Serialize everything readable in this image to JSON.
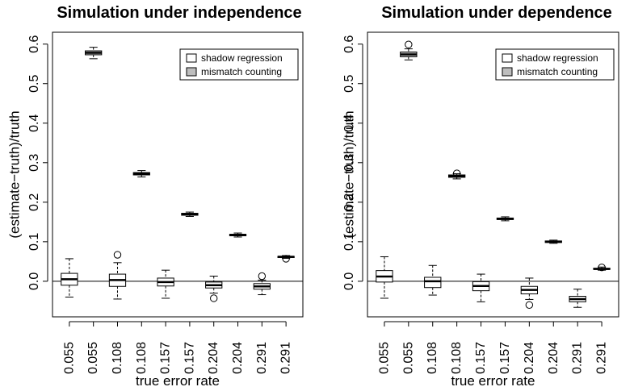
{
  "chart_data": [
    {
      "type": "box",
      "title": "Simulation under independence",
      "xlabel": "true error rate",
      "ylabel": "(estimate−truth)/truth",
      "ylim": [
        -0.09,
        0.63
      ],
      "yticks": [
        "0.0",
        "0.1",
        "0.2",
        "0.3",
        "0.4",
        "0.5",
        "0.6"
      ],
      "categories": [
        "0.055",
        "0.055",
        "0.108",
        "0.108",
        "0.157",
        "0.157",
        "0.204",
        "0.204",
        "0.291",
        "0.291"
      ],
      "legend": {
        "position": "top-right",
        "entries": [
          {
            "name": "shadow regression",
            "color": "#ffffff"
          },
          {
            "name": "mismatch counting",
            "color": "#bebebe"
          }
        ]
      },
      "boxes": [
        {
          "category": "0.055",
          "series": "shadow regression",
          "whisker_low": -0.04,
          "q1": -0.01,
          "median": 0.005,
          "q3": 0.02,
          "whisker_high": 0.057,
          "outliers": []
        },
        {
          "category": "0.055",
          "series": "mismatch counting",
          "whisker_low": 0.563,
          "q1": 0.573,
          "median": 0.578,
          "q3": 0.583,
          "whisker_high": 0.592,
          "outliers": []
        },
        {
          "category": "0.108",
          "series": "shadow regression",
          "whisker_low": -0.045,
          "q1": -0.013,
          "median": 0.003,
          "q3": 0.018,
          "whisker_high": 0.047,
          "outliers": [
            0.067
          ]
        },
        {
          "category": "0.108",
          "series": "mismatch counting",
          "whisker_low": 0.264,
          "q1": 0.269,
          "median": 0.272,
          "q3": 0.275,
          "whisker_high": 0.28,
          "outliers": []
        },
        {
          "category": "0.157",
          "series": "shadow regression",
          "whisker_low": -0.043,
          "q1": -0.012,
          "median": -0.002,
          "q3": 0.008,
          "whisker_high": 0.028,
          "outliers": []
        },
        {
          "category": "0.157",
          "series": "mismatch counting",
          "whisker_low": 0.164,
          "q1": 0.167,
          "median": 0.169,
          "q3": 0.172,
          "whisker_high": 0.175,
          "outliers": []
        },
        {
          "category": "0.204",
          "series": "shadow regression",
          "whisker_low": -0.03,
          "q1": -0.017,
          "median": -0.01,
          "q3": -0.002,
          "whisker_high": 0.013,
          "outliers": [
            -0.043
          ]
        },
        {
          "category": "0.204",
          "series": "mismatch counting",
          "whisker_low": 0.112,
          "q1": 0.115,
          "median": 0.117,
          "q3": 0.119,
          "whisker_high": 0.122,
          "outliers": []
        },
        {
          "category": "0.291",
          "series": "shadow regression",
          "whisker_low": -0.034,
          "q1": -0.02,
          "median": -0.013,
          "q3": -0.006,
          "whisker_high": 0.003,
          "outliers": [
            0.013
          ]
        },
        {
          "category": "0.291",
          "series": "mismatch counting",
          "whisker_low": 0.058,
          "q1": 0.06,
          "median": 0.062,
          "q3": 0.063,
          "whisker_high": 0.065,
          "outliers": [
            0.057
          ]
        }
      ]
    },
    {
      "type": "box",
      "title": "Simulation under dependence",
      "xlabel": "true error rate",
      "ylabel": "(estimate−truth)/truth",
      "ylim": [
        -0.09,
        0.63
      ],
      "yticks": [
        "0.0",
        "0.1",
        "0.2",
        "0.3",
        "0.4",
        "0.5",
        "0.6"
      ],
      "categories": [
        "0.055",
        "0.055",
        "0.108",
        "0.108",
        "0.157",
        "0.157",
        "0.204",
        "0.204",
        "0.291",
        "0.291"
      ],
      "legend": {
        "position": "top-right",
        "entries": [
          {
            "name": "shadow regression",
            "color": "#ffffff"
          },
          {
            "name": "mismatch counting",
            "color": "#bebebe"
          }
        ]
      },
      "boxes": [
        {
          "category": "0.055",
          "series": "shadow regression",
          "whisker_low": -0.043,
          "q1": -0.002,
          "median": 0.012,
          "q3": 0.027,
          "whisker_high": 0.062,
          "outliers": []
        },
        {
          "category": "0.055",
          "series": "mismatch counting",
          "whisker_low": 0.56,
          "q1": 0.568,
          "median": 0.574,
          "q3": 0.58,
          "whisker_high": 0.588,
          "outliers": [
            0.599
          ]
        },
        {
          "category": "0.108",
          "series": "shadow regression",
          "whisker_low": -0.035,
          "q1": -0.016,
          "median": 0.0,
          "q3": 0.01,
          "whisker_high": 0.04,
          "outliers": []
        },
        {
          "category": "0.108",
          "series": "mismatch counting",
          "whisker_low": 0.259,
          "q1": 0.263,
          "median": 0.266,
          "q3": 0.269,
          "whisker_high": 0.272,
          "outliers": [
            0.273
          ]
        },
        {
          "category": "0.157",
          "series": "shadow regression",
          "whisker_low": -0.052,
          "q1": -0.024,
          "median": -0.012,
          "q3": -0.001,
          "whisker_high": 0.018,
          "outliers": []
        },
        {
          "category": "0.157",
          "series": "mismatch counting",
          "whisker_low": 0.153,
          "q1": 0.156,
          "median": 0.158,
          "q3": 0.16,
          "whisker_high": 0.163,
          "outliers": []
        },
        {
          "category": "0.204",
          "series": "shadow regression",
          "whisker_low": -0.046,
          "q1": -0.032,
          "median": -0.022,
          "q3": -0.013,
          "whisker_high": 0.008,
          "outliers": [
            -0.06
          ]
        },
        {
          "category": "0.204",
          "series": "mismatch counting",
          "whisker_low": 0.096,
          "q1": 0.098,
          "median": 0.1,
          "q3": 0.102,
          "whisker_high": 0.104,
          "outliers": []
        },
        {
          "category": "0.291",
          "series": "shadow regression",
          "whisker_low": -0.066,
          "q1": -0.052,
          "median": -0.045,
          "q3": -0.038,
          "whisker_high": -0.02,
          "outliers": []
        },
        {
          "category": "0.291",
          "series": "mismatch counting",
          "whisker_low": 0.028,
          "q1": 0.03,
          "median": 0.031,
          "q3": 0.033,
          "whisker_high": 0.036,
          "outliers": [
            0.035
          ]
        }
      ]
    }
  ]
}
